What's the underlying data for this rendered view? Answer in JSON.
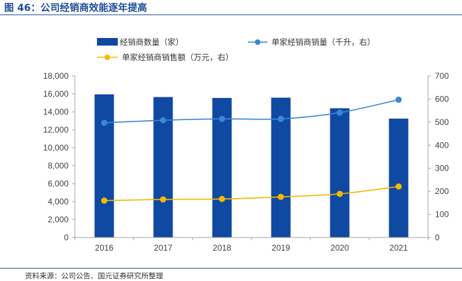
{
  "figure": {
    "title": "图 46：公司经销商效能逐年提高",
    "source": "资料来源：公司公告、国元证券研究所整理"
  },
  "colors": {
    "bar": "#0f49a1",
    "line_volume": "#3a87d6",
    "line_sales": "#f5b800",
    "title": "#1f4e9a"
  },
  "chart_data": {
    "type": "bar",
    "title": "",
    "categories": [
      "2016",
      "2017",
      "2018",
      "2019",
      "2020",
      "2021"
    ],
    "series": [
      {
        "name": "经销商数量（家）",
        "type": "bar",
        "axis": "left",
        "values": [
          15950,
          15650,
          15550,
          15580,
          14400,
          13250
        ]
      },
      {
        "name": "单家经销商销量（千升，右）",
        "type": "line",
        "axis": "right",
        "values": [
          497,
          508,
          514,
          514,
          541,
          597
        ]
      },
      {
        "name": "单家经销商销售额（万元，右）",
        "type": "line",
        "axis": "right",
        "values": [
          160,
          165,
          167,
          176,
          189,
          221
        ]
      }
    ],
    "y_left": {
      "min": 0,
      "max": 18000,
      "ticks": [
        "0",
        "2,000",
        "4,000",
        "6,000",
        "8,000",
        "10,000",
        "12,000",
        "14,000",
        "16,000",
        "18,000"
      ]
    },
    "y_right": {
      "min": 0,
      "max": 700,
      "ticks": [
        "0",
        "100",
        "200",
        "300",
        "400",
        "500",
        "600",
        "700"
      ]
    },
    "grid": false,
    "legend_position": "top"
  }
}
